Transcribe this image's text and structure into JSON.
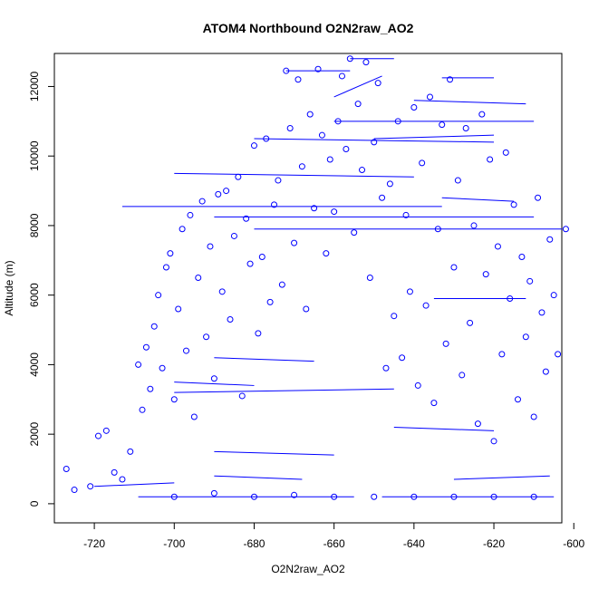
{
  "chart_data": {
    "type": "scatter",
    "title": "ATOM4 Northbound O2N2raw_AO2",
    "xlabel": "O2N2raw_AO2",
    "ylabel": "Altitude (m)",
    "xlim": [
      -730,
      -603
    ],
    "ylim": [
      -550,
      12950
    ],
    "xticks": [
      -720,
      -700,
      -680,
      -660,
      -640,
      -620,
      -600
    ],
    "yticks": [
      0,
      2000,
      4000,
      6000,
      8000,
      10000,
      12000
    ],
    "grid": false,
    "legend": "none",
    "marker": "open-circle",
    "line_connections": true,
    "series": [
      {
        "color": "#0000ff",
        "points": [
          [
            -727,
            1000
          ],
          [
            -725,
            400
          ],
          [
            -721,
            500
          ],
          [
            -719,
            1950
          ],
          [
            -717,
            2100
          ],
          [
            -715,
            900
          ],
          [
            -713,
            700
          ],
          [
            -711,
            1500
          ],
          [
            -709,
            4000
          ],
          [
            -708,
            2700
          ],
          [
            -707,
            4500
          ],
          [
            -706,
            3300
          ],
          [
            -705,
            5100
          ],
          [
            -704,
            6000
          ],
          [
            -703,
            3900
          ],
          [
            -702,
            6800
          ],
          [
            -701,
            7200
          ],
          [
            -700,
            3000
          ],
          [
            -699,
            5600
          ],
          [
            -698,
            7900
          ],
          [
            -697,
            4400
          ],
          [
            -696,
            8300
          ],
          [
            -695,
            2500
          ],
          [
            -694,
            6500
          ],
          [
            -693,
            8700
          ],
          [
            -692,
            4800
          ],
          [
            -691,
            7400
          ],
          [
            -690,
            3600
          ],
          [
            -689,
            8900
          ],
          [
            -688,
            6100
          ],
          [
            -687,
            9000
          ],
          [
            -686,
            5300
          ],
          [
            -685,
            7700
          ],
          [
            -684,
            9400
          ],
          [
            -683,
            3100
          ],
          [
            -682,
            8200
          ],
          [
            -681,
            6900
          ],
          [
            -680,
            10300
          ],
          [
            -679,
            4900
          ],
          [
            -678,
            7100
          ],
          [
            -677,
            10500
          ],
          [
            -676,
            5800
          ],
          [
            -675,
            8600
          ],
          [
            -674,
            9300
          ],
          [
            -673,
            6300
          ],
          [
            -672,
            12450
          ],
          [
            -671,
            10800
          ],
          [
            -670,
            7500
          ],
          [
            -669,
            12200
          ],
          [
            -668,
            9700
          ],
          [
            -667,
            5600
          ],
          [
            -666,
            11200
          ],
          [
            -665,
            8500
          ],
          [
            -664,
            12500
          ],
          [
            -663,
            10600
          ],
          [
            -662,
            7200
          ],
          [
            -661,
            9900
          ],
          [
            -660,
            8400
          ],
          [
            -659,
            11000
          ],
          [
            -658,
            12300
          ],
          [
            -657,
            10200
          ],
          [
            -656,
            12800
          ],
          [
            -655,
            7800
          ],
          [
            -654,
            11500
          ],
          [
            -653,
            9600
          ],
          [
            -652,
            12700
          ],
          [
            -651,
            6500
          ],
          [
            -650,
            10400
          ],
          [
            -649,
            12100
          ],
          [
            -648,
            8800
          ],
          [
            -647,
            3900
          ],
          [
            -646,
            9200
          ],
          [
            -645,
            5400
          ],
          [
            -644,
            11000
          ],
          [
            -643,
            4200
          ],
          [
            -642,
            8300
          ],
          [
            -641,
            6100
          ],
          [
            -640,
            11400
          ],
          [
            -639,
            3400
          ],
          [
            -638,
            9800
          ],
          [
            -637,
            5700
          ],
          [
            -636,
            11700
          ],
          [
            -635,
            2900
          ],
          [
            -634,
            7900
          ],
          [
            -633,
            10900
          ],
          [
            -632,
            4600
          ],
          [
            -631,
            12200
          ],
          [
            -630,
            6800
          ],
          [
            -629,
            9300
          ],
          [
            -628,
            3700
          ],
          [
            -627,
            10800
          ],
          [
            -626,
            5200
          ],
          [
            -625,
            8000
          ],
          [
            -624,
            2300
          ],
          [
            -623,
            11200
          ],
          [
            -622,
            6600
          ],
          [
            -621,
            9900
          ],
          [
            -620,
            1800
          ],
          [
            -619,
            7400
          ],
          [
            -618,
            4300
          ],
          [
            -617,
            10100
          ],
          [
            -616,
            5900
          ],
          [
            -615,
            8600
          ],
          [
            -614,
            3000
          ],
          [
            -613,
            7100
          ],
          [
            -612,
            4800
          ],
          [
            -611,
            6400
          ],
          [
            -610,
            2500
          ],
          [
            -609,
            8800
          ],
          [
            -608,
            5500
          ],
          [
            -607,
            3800
          ],
          [
            -606,
            7600
          ],
          [
            -605,
            6000
          ],
          [
            -604,
            4300
          ],
          [
            -602,
            7900
          ],
          [
            -700,
            200
          ],
          [
            -690,
            300
          ],
          [
            -680,
            200
          ],
          [
            -670,
            250
          ],
          [
            -660,
            200
          ],
          [
            -650,
            200
          ],
          [
            -640,
            200
          ],
          [
            -630,
            200
          ],
          [
            -620,
            200
          ],
          [
            -610,
            200
          ]
        ],
        "lines": [
          [
            [
              -713,
              8550
            ],
            [
              -633,
              8550
            ]
          ],
          [
            [
              -690,
              8250
            ],
            [
              -610,
              8250
            ]
          ],
          [
            [
              -700,
              9500
            ],
            [
              -640,
              9400
            ]
          ],
          [
            [
              -680,
              10500
            ],
            [
              -620,
              10400
            ]
          ],
          [
            [
              -672,
              12450
            ],
            [
              -656,
              12450
            ]
          ],
          [
            [
              -656,
              12800
            ],
            [
              -645,
              12800
            ]
          ],
          [
            [
              -640,
              11600
            ],
            [
              -612,
              11500
            ]
          ],
          [
            [
              -633,
              12250
            ],
            [
              -620,
              12250
            ]
          ],
          [
            [
              -660,
              11000
            ],
            [
              -610,
              11000
            ]
          ],
          [
            [
              -650,
              10500
            ],
            [
              -620,
              10600
            ]
          ],
          [
            [
              -709,
              200
            ],
            [
              -655,
              200
            ]
          ],
          [
            [
              -648,
              200
            ],
            [
              -605,
              200
            ]
          ],
          [
            [
              -700,
              3500
            ],
            [
              -680,
              3400
            ]
          ],
          [
            [
              -690,
              1500
            ],
            [
              -660,
              1400
            ]
          ],
          [
            [
              -635,
              5900
            ],
            [
              -612,
              5900
            ]
          ],
          [
            [
              -680,
              7900
            ],
            [
              -603,
              7900
            ]
          ],
          [
            [
              -700,
              3200
            ],
            [
              -645,
              3300
            ]
          ],
          [
            [
              -690,
              4200
            ],
            [
              -665,
              4100
            ]
          ],
          [
            [
              -645,
              2200
            ],
            [
              -620,
              2100
            ]
          ],
          [
            [
              -660,
              11700
            ],
            [
              -648,
              12300
            ]
          ],
          [
            [
              -690,
              800
            ],
            [
              -668,
              700
            ]
          ],
          [
            [
              -630,
              700
            ],
            [
              -606,
              800
            ]
          ],
          [
            [
              -720,
              500
            ],
            [
              -700,
              600
            ]
          ],
          [
            [
              -633,
              8800
            ],
            [
              -615,
              8700
            ]
          ]
        ]
      }
    ]
  }
}
